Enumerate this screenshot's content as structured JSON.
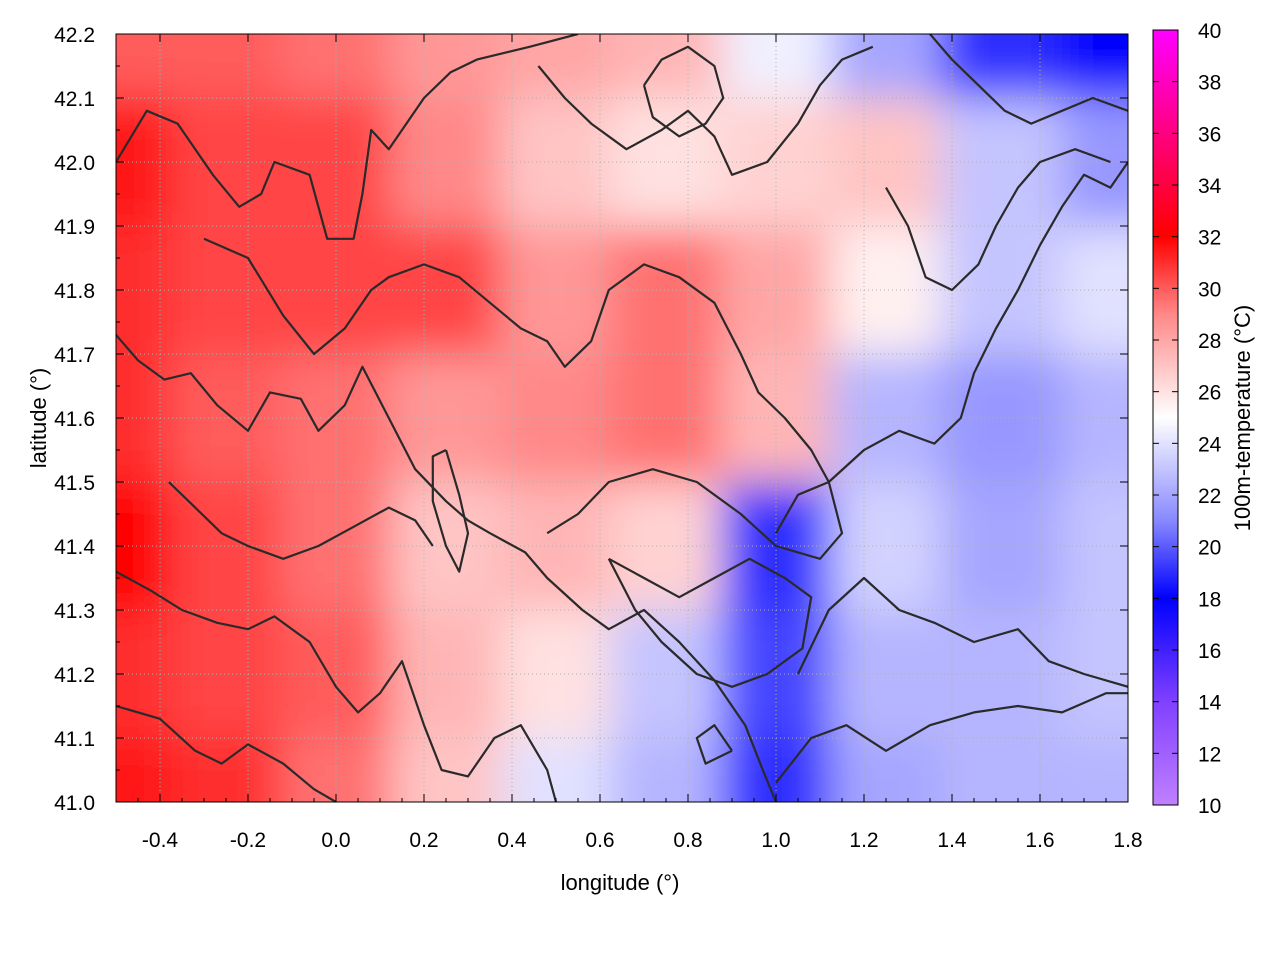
{
  "chart_data": {
    "type": "heatmap",
    "title": "",
    "xlabel": "longitude (°)",
    "ylabel": "latitude (°)",
    "xlim": [
      -0.5,
      1.8
    ],
    "ylim": [
      41.0,
      42.2
    ],
    "xticks": [
      "-0.4",
      "-0.2",
      "0.0",
      "0.2",
      "0.4",
      "0.6",
      "0.8",
      "1.0",
      "1.2",
      "1.4",
      "1.6",
      "1.8"
    ],
    "xtick_values": [
      -0.4,
      -0.2,
      0.0,
      0.2,
      0.4,
      0.6,
      0.8,
      1.0,
      1.2,
      1.4,
      1.6,
      1.8
    ],
    "yticks": [
      "41.0",
      "41.1",
      "41.2",
      "41.3",
      "41.4",
      "41.5",
      "41.6",
      "41.7",
      "41.8",
      "41.9",
      "42.0",
      "42.1",
      "42.2"
    ],
    "ytick_values": [
      41.0,
      41.1,
      41.2,
      41.3,
      41.4,
      41.5,
      41.6,
      41.7,
      41.8,
      41.9,
      42.0,
      42.1,
      42.2
    ],
    "grid": true,
    "colorbar": {
      "label": "100m-temperature (°C)",
      "range": [
        10,
        40
      ],
      "ticks": [
        "10",
        "12",
        "14",
        "16",
        "18",
        "20",
        "22",
        "24",
        "26",
        "28",
        "30",
        "32",
        "34",
        "36",
        "38",
        "40"
      ],
      "tick_values": [
        10,
        12,
        14,
        16,
        18,
        20,
        22,
        24,
        26,
        28,
        30,
        32,
        34,
        36,
        38,
        40
      ],
      "colors": [
        {
          "value": 10,
          "color": "#c080ff"
        },
        {
          "value": 14,
          "color": "#8040ff"
        },
        {
          "value": 18,
          "color": "#0000ff"
        },
        {
          "value": 21,
          "color": "#8888ff"
        },
        {
          "value": 25,
          "color": "#ffffff"
        },
        {
          "value": 29,
          "color": "#ff8888"
        },
        {
          "value": 32,
          "color": "#ff0000"
        },
        {
          "value": 36,
          "color": "#ff0080"
        },
        {
          "value": 40,
          "color": "#ff00ff"
        }
      ]
    },
    "contour_color": "#2a2a2a",
    "temperature_samples": {
      "longitudes": [
        -0.5,
        -0.25,
        0.0,
        0.25,
        0.5,
        0.75,
        1.0,
        1.25,
        1.5,
        1.8
      ],
      "latitudes": [
        41.0,
        41.2,
        41.4,
        41.6,
        41.8,
        42.0,
        42.2
      ],
      "values": [
        [
          31.5,
          31.0,
          29.5,
          27.0,
          24.0,
          22.5,
          19.0,
          22.0,
          22.5,
          22.5
        ],
        [
          31.0,
          30.5,
          30.0,
          27.5,
          26.0,
          23.0,
          19.5,
          22.5,
          22.5,
          23.0
        ],
        [
          32.0,
          30.5,
          29.5,
          27.0,
          27.5,
          26.5,
          19.0,
          23.5,
          22.0,
          23.0
        ],
        [
          31.0,
          30.0,
          29.5,
          28.5,
          29.0,
          29.5,
          27.5,
          22.5,
          21.5,
          22.5
        ],
        [
          31.0,
          30.5,
          30.5,
          30.5,
          28.5,
          29.5,
          28.0,
          25.5,
          23.0,
          24.0
        ],
        [
          31.5,
          30.5,
          30.5,
          29.0,
          27.0,
          26.0,
          26.5,
          27.0,
          23.0,
          21.5
        ],
        [
          30.0,
          30.0,
          29.5,
          28.5,
          28.0,
          27.5,
          24.5,
          22.0,
          19.0,
          18.0
        ]
      ]
    },
    "contours": [
      [
        [
          -0.5,
          42.0
        ],
        [
          -0.43,
          42.08
        ],
        [
          -0.36,
          42.06
        ],
        [
          -0.28,
          41.98
        ],
        [
          -0.22,
          41.93
        ],
        [
          -0.17,
          41.95
        ],
        [
          -0.14,
          42.0
        ],
        [
          -0.06,
          41.98
        ],
        [
          -0.02,
          41.88
        ],
        [
          0.04,
          41.88
        ],
        [
          0.06,
          41.95
        ],
        [
          0.08,
          42.05
        ],
        [
          0.12,
          42.02
        ],
        [
          0.16,
          42.06
        ],
        [
          0.2,
          42.1
        ],
        [
          0.26,
          42.14
        ],
        [
          0.32,
          42.16
        ],
        [
          0.44,
          42.18
        ],
        [
          0.55,
          42.2
        ]
      ],
      [
        [
          -0.5,
          41.73
        ],
        [
          -0.45,
          41.69
        ],
        [
          -0.39,
          41.66
        ],
        [
          -0.33,
          41.67
        ],
        [
          -0.27,
          41.62
        ],
        [
          -0.2,
          41.58
        ],
        [
          -0.15,
          41.64
        ],
        [
          -0.08,
          41.63
        ],
        [
          -0.04,
          41.58
        ],
        [
          0.02,
          41.62
        ],
        [
          0.06,
          41.68
        ],
        [
          0.12,
          41.6
        ],
        [
          0.18,
          41.52
        ],
        [
          0.25,
          41.47
        ],
        [
          0.3,
          41.44
        ],
        [
          0.35,
          41.42
        ],
        [
          0.43,
          41.39
        ],
        [
          0.48,
          41.35
        ],
        [
          0.56,
          41.3
        ],
        [
          0.62,
          41.27
        ],
        [
          0.7,
          41.3
        ],
        [
          0.78,
          41.25
        ],
        [
          0.86,
          41.19
        ],
        [
          0.93,
          41.12
        ],
        [
          0.97,
          41.05
        ],
        [
          1.0,
          41.0
        ]
      ],
      [
        [
          -0.5,
          41.36
        ],
        [
          -0.42,
          41.33
        ],
        [
          -0.35,
          41.3
        ],
        [
          -0.27,
          41.28
        ],
        [
          -0.2,
          41.27
        ],
        [
          -0.14,
          41.29
        ],
        [
          -0.06,
          41.25
        ],
        [
          0.0,
          41.18
        ],
        [
          0.05,
          41.14
        ],
        [
          0.1,
          41.17
        ],
        [
          0.15,
          41.22
        ],
        [
          0.2,
          41.12
        ],
        [
          0.24,
          41.05
        ],
        [
          0.3,
          41.04
        ],
        [
          0.36,
          41.1
        ],
        [
          0.42,
          41.12
        ],
        [
          0.48,
          41.05
        ],
        [
          0.5,
          41.0
        ]
      ],
      [
        [
          -0.5,
          41.15
        ],
        [
          -0.4,
          41.13
        ],
        [
          -0.32,
          41.08
        ],
        [
          -0.26,
          41.06
        ],
        [
          -0.2,
          41.09
        ],
        [
          -0.12,
          41.06
        ],
        [
          -0.05,
          41.02
        ],
        [
          0.0,
          41.0
        ]
      ],
      [
        [
          -0.3,
          41.88
        ],
        [
          -0.2,
          41.85
        ],
        [
          -0.12,
          41.76
        ],
        [
          -0.05,
          41.7
        ],
        [
          0.02,
          41.74
        ],
        [
          0.08,
          41.8
        ],
        [
          0.12,
          41.82
        ],
        [
          0.2,
          41.84
        ],
        [
          0.28,
          41.82
        ],
        [
          0.35,
          41.78
        ],
        [
          0.42,
          41.74
        ],
        [
          0.48,
          41.72
        ],
        [
          0.52,
          41.68
        ],
        [
          0.58,
          41.72
        ],
        [
          0.62,
          41.8
        ],
        [
          0.7,
          41.84
        ],
        [
          0.78,
          41.82
        ],
        [
          0.86,
          41.78
        ],
        [
          0.92,
          41.7
        ],
        [
          0.96,
          41.64
        ],
        [
          1.02,
          41.6
        ],
        [
          1.08,
          41.55
        ],
        [
          1.12,
          41.5
        ],
        [
          1.15,
          41.42
        ],
        [
          1.1,
          41.38
        ],
        [
          1.0,
          41.4
        ],
        [
          0.92,
          41.45
        ],
        [
          0.82,
          41.5
        ],
        [
          0.72,
          41.52
        ],
        [
          0.62,
          41.5
        ],
        [
          0.55,
          41.45
        ],
        [
          0.48,
          41.42
        ]
      ],
      [
        [
          1.0,
          41.42
        ],
        [
          1.05,
          41.48
        ],
        [
          1.12,
          41.5
        ],
        [
          1.2,
          41.55
        ],
        [
          1.28,
          41.58
        ],
        [
          1.36,
          41.56
        ],
        [
          1.42,
          41.6
        ],
        [
          1.45,
          41.67
        ],
        [
          1.5,
          41.74
        ],
        [
          1.55,
          41.8
        ],
        [
          1.6,
          41.87
        ],
        [
          1.65,
          41.93
        ],
        [
          1.7,
          41.98
        ],
        [
          1.76,
          41.96
        ],
        [
          1.8,
          42.0
        ]
      ],
      [
        [
          1.05,
          41.2
        ],
        [
          1.12,
          41.3
        ],
        [
          1.2,
          41.35
        ],
        [
          1.28,
          41.3
        ],
        [
          1.36,
          41.28
        ],
        [
          1.45,
          41.25
        ],
        [
          1.55,
          41.27
        ],
        [
          1.62,
          41.22
        ],
        [
          1.7,
          41.2
        ],
        [
          1.8,
          41.18
        ]
      ],
      [
        [
          1.0,
          41.03
        ],
        [
          1.08,
          41.1
        ],
        [
          1.16,
          41.12
        ],
        [
          1.25,
          41.08
        ],
        [
          1.35,
          41.12
        ],
        [
          1.45,
          41.14
        ],
        [
          1.55,
          41.15
        ],
        [
          1.65,
          41.14
        ],
        [
          1.75,
          41.17
        ],
        [
          1.8,
          41.17
        ]
      ],
      [
        [
          0.62,
          41.38
        ],
        [
          0.7,
          41.35
        ],
        [
          0.78,
          41.32
        ],
        [
          0.86,
          41.35
        ],
        [
          0.94,
          41.38
        ],
        [
          1.02,
          41.35
        ],
        [
          1.08,
          41.32
        ],
        [
          1.06,
          41.24
        ],
        [
          0.98,
          41.2
        ],
        [
          0.9,
          41.18
        ],
        [
          0.82,
          41.2
        ],
        [
          0.74,
          41.25
        ],
        [
          0.68,
          41.3
        ],
        [
          0.62,
          41.38
        ]
      ],
      [
        [
          0.46,
          42.15
        ],
        [
          0.52,
          42.1
        ],
        [
          0.58,
          42.06
        ],
        [
          0.66,
          42.02
        ],
        [
          0.74,
          42.05
        ],
        [
          0.8,
          42.08
        ],
        [
          0.86,
          42.04
        ],
        [
          0.9,
          41.98
        ],
        [
          0.98,
          42.0
        ],
        [
          1.05,
          42.06
        ],
        [
          1.1,
          42.12
        ],
        [
          1.15,
          42.16
        ],
        [
          1.22,
          42.18
        ]
      ],
      [
        [
          1.35,
          42.2
        ],
        [
          1.4,
          42.16
        ],
        [
          1.46,
          42.12
        ],
        [
          1.52,
          42.08
        ],
        [
          1.58,
          42.06
        ],
        [
          1.65,
          42.08
        ],
        [
          1.72,
          42.1
        ],
        [
          1.8,
          42.08
        ]
      ],
      [
        [
          1.25,
          41.96
        ],
        [
          1.3,
          41.9
        ],
        [
          1.34,
          41.82
        ],
        [
          1.4,
          41.8
        ],
        [
          1.46,
          41.84
        ],
        [
          1.5,
          41.9
        ],
        [
          1.55,
          41.96
        ],
        [
          1.6,
          42.0
        ],
        [
          1.68,
          42.02
        ],
        [
          1.76,
          42.0
        ]
      ],
      [
        [
          -0.38,
          41.5
        ],
        [
          -0.32,
          41.46
        ],
        [
          -0.26,
          41.42
        ],
        [
          -0.2,
          41.4
        ],
        [
          -0.12,
          41.38
        ],
        [
          -0.04,
          41.4
        ],
        [
          0.04,
          41.43
        ],
        [
          0.12,
          41.46
        ],
        [
          0.18,
          41.44
        ],
        [
          0.22,
          41.4
        ]
      ],
      [
        [
          0.25,
          41.55
        ],
        [
          0.28,
          41.48
        ],
        [
          0.3,
          41.42
        ],
        [
          0.28,
          41.36
        ],
        [
          0.25,
          41.4
        ],
        [
          0.22,
          41.47
        ],
        [
          0.22,
          41.54
        ],
        [
          0.25,
          41.55
        ]
      ],
      [
        [
          0.7,
          42.12
        ],
        [
          0.74,
          42.16
        ],
        [
          0.8,
          42.18
        ],
        [
          0.86,
          42.15
        ],
        [
          0.88,
          42.1
        ],
        [
          0.84,
          42.06
        ],
        [
          0.78,
          42.04
        ],
        [
          0.72,
          42.07
        ],
        [
          0.7,
          42.12
        ]
      ],
      [
        [
          0.9,
          41.08
        ],
        [
          0.86,
          41.12
        ],
        [
          0.82,
          41.1
        ],
        [
          0.84,
          41.06
        ],
        [
          0.9,
          41.08
        ]
      ]
    ]
  }
}
